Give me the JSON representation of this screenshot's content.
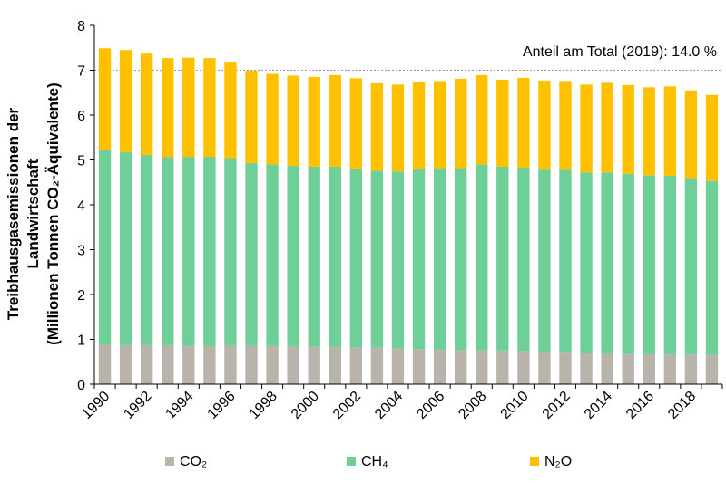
{
  "chart_data": {
    "type": "bar",
    "stacked": true,
    "annotation": "Anteil am Total  (2019):  14.0 %",
    "ylabel_lines": [
      "Treibhausgasemissionen  der",
      "Landwirtschaft",
      "(Millionen Tonnen CO₂-Äquivalente)"
    ],
    "ylim": [
      0,
      8
    ],
    "yticks": [
      0,
      1,
      2,
      3,
      4,
      5,
      6,
      7,
      8
    ],
    "gridline_at": 7,
    "categories": [
      1990,
      1991,
      1992,
      1993,
      1994,
      1995,
      1996,
      1997,
      1998,
      1999,
      2000,
      2001,
      2002,
      2003,
      2004,
      2005,
      2006,
      2007,
      2008,
      2009,
      2010,
      2011,
      2012,
      2013,
      2014,
      2015,
      2016,
      2017,
      2018,
      2019
    ],
    "xtick_labels": [
      "1990",
      "1992",
      "1994",
      "1996",
      "1998",
      "2000",
      "2002",
      "2004",
      "2006",
      "2008",
      "2010",
      "2012",
      "2014",
      "2016",
      "2018"
    ],
    "series": [
      {
        "name": "CO₂",
        "color": "#b8b3ab",
        "values": [
          0.88,
          0.87,
          0.87,
          0.86,
          0.86,
          0.85,
          0.86,
          0.86,
          0.85,
          0.85,
          0.84,
          0.83,
          0.82,
          0.81,
          0.8,
          0.78,
          0.77,
          0.76,
          0.75,
          0.75,
          0.74,
          0.73,
          0.72,
          0.7,
          0.68,
          0.67,
          0.67,
          0.67,
          0.66,
          0.65
        ]
      },
      {
        "name": "CH₄",
        "color": "#6fcf98",
        "values": [
          4.34,
          4.3,
          4.24,
          4.2,
          4.21,
          4.22,
          4.18,
          4.07,
          4.05,
          4.02,
          4.01,
          4.02,
          3.99,
          3.95,
          3.94,
          4.01,
          4.05,
          4.06,
          4.15,
          4.1,
          4.09,
          4.05,
          4.06,
          4.02,
          4.04,
          4.02,
          3.99,
          3.98,
          3.94,
          3.88
        ]
      },
      {
        "name": "N₂O",
        "color": "#ffc000",
        "values": [
          2.27,
          2.28,
          2.26,
          2.21,
          2.21,
          2.2,
          2.15,
          2.06,
          2.02,
          2.01,
          2.0,
          2.04,
          2.01,
          1.95,
          1.94,
          1.94,
          1.94,
          1.99,
          1.99,
          1.94,
          2.0,
          1.99,
          1.98,
          1.96,
          2.0,
          1.98,
          1.96,
          1.99,
          1.95,
          1.92
        ]
      }
    ],
    "legend_labels": [
      "CO₂",
      "CH₄",
      "N₂O"
    ],
    "legend_position": "bottom",
    "grid": false
  }
}
